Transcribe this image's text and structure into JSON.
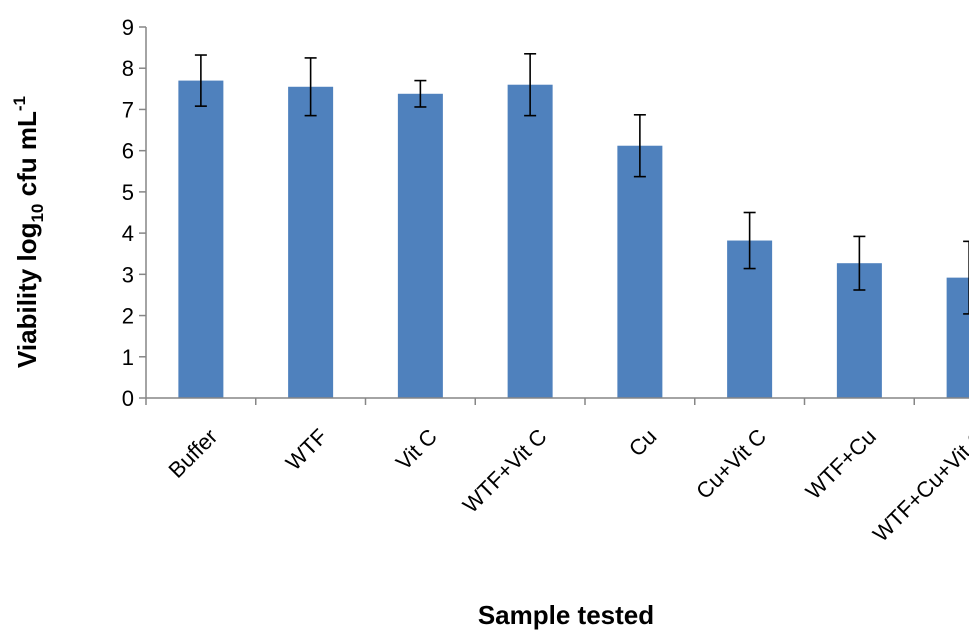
{
  "chart_data": {
    "type": "bar",
    "categories": [
      "Buffer",
      "WTF",
      "Vit C",
      "WTF+Vit C",
      "Cu",
      "Cu+Vit C",
      "WTF+Cu",
      "WTF+Cu+Vit C"
    ],
    "series": [
      {
        "values": [
          7.7,
          7.55,
          7.38,
          7.6,
          6.12,
          3.82,
          3.27,
          2.92
        ],
        "errors": [
          0.62,
          0.7,
          0.32,
          0.75,
          0.75,
          0.68,
          0.65,
          0.88
        ]
      }
    ],
    "xlabel": "Sample tested",
    "ylabel": {
      "prefix": "Viability log",
      "subscript": "10",
      "middle": " cfu mL",
      "superscript": "-1"
    },
    "ylim": [
      0,
      9
    ],
    "yticks": [
      0,
      1,
      2,
      3,
      4,
      5,
      6,
      7,
      8,
      9
    ],
    "grid": false,
    "legend": "none",
    "colors": {
      "bar": "#4f81bd",
      "error_bar": "#000000",
      "axis": "#868686"
    }
  }
}
